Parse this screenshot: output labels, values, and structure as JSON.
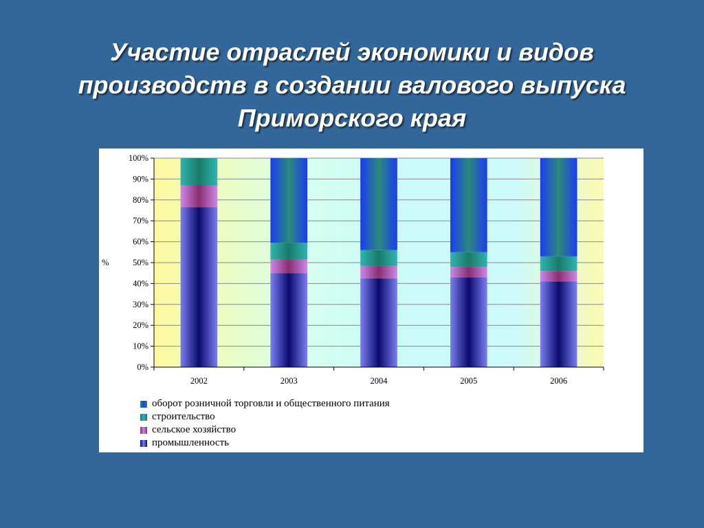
{
  "slide": {
    "title_lines": [
      "Участие отраслей экономики и видов",
      "производств в создании валового выпуска",
      "Приморского края"
    ]
  },
  "colors": {
    "background": "#336699",
    "promyshlennost": "#7b7ff0",
    "selskoe": "#cc88e8",
    "stroitelstvo": "#2fb5b0",
    "oborot": "#1a3cf5"
  },
  "chart_data": {
    "type": "bar",
    "stacked": true,
    "percent": true,
    "categories": [
      "2002",
      "2003",
      "2004",
      "2005",
      "2006"
    ],
    "ylabel": "%",
    "xlabel": "",
    "ylim": [
      0,
      100
    ],
    "yticks": [
      "0%",
      "10%",
      "20%",
      "30%",
      "40%",
      "50%",
      "60%",
      "70%",
      "80%",
      "90%",
      "100%"
    ],
    "grid": true,
    "legend_position": "bottom",
    "series": [
      {
        "name": "промышленность",
        "values": [
          76.5,
          45,
          42.5,
          43,
          41
        ],
        "color": "#7b7ff0",
        "dark": "#0a0a6e"
      },
      {
        "name": "сельское хозяйство",
        "values": [
          10.5,
          6.5,
          6,
          5,
          5
        ],
        "color": "#cc88e8",
        "dark": "#8a2e70"
      },
      {
        "name": "строительство",
        "values": [
          13,
          8,
          7.5,
          7,
          7
        ],
        "color": "#2fb5b0",
        "dark": "#1a7a6a"
      },
      {
        "name": "оборот розничной торговли и общественного питания",
        "values": [
          0,
          40.5,
          44,
          45,
          47
        ],
        "color": "#1a3cf5",
        "dark": "#2c8a7a"
      }
    ]
  }
}
